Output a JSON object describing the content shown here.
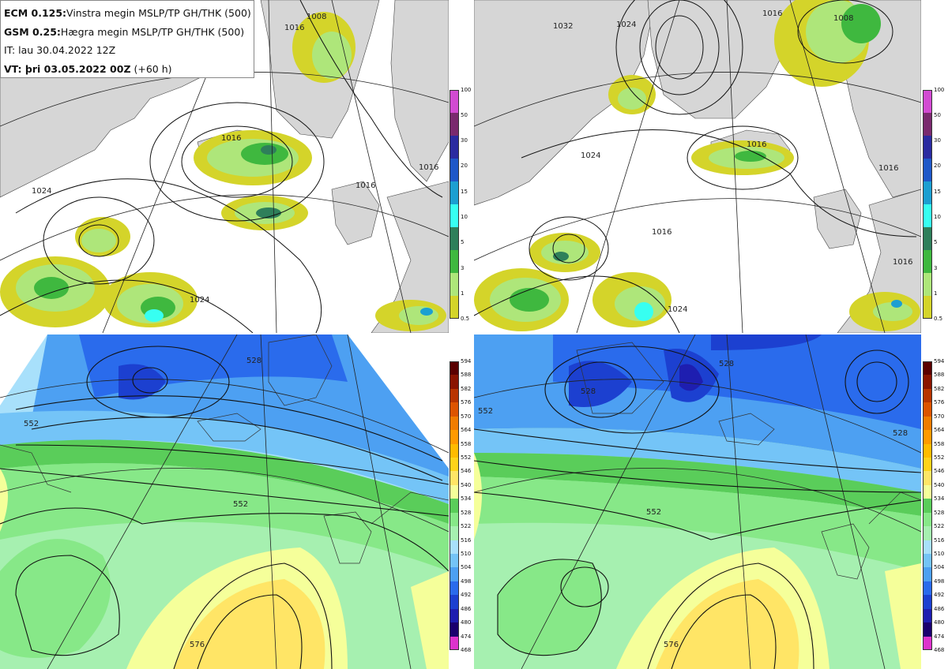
{
  "header": {
    "line1_model": "ECM 0.125:",
    "line1_desc": "Vinstra megin MSLP/TP GH/THK (500)",
    "line2_model": "GSM 0.25:",
    "line2_desc": "Hægra megin MSLP/TP GH/THK (500)",
    "line3": "IT: lau 30.04.2022 12Z",
    "line4_vt": "VT: þri 03.05.2022 00Z",
    "line4_lead": "(+60 h)"
  },
  "colors": {
    "land": "#d6d6d6",
    "sea": "#ffffff",
    "precip": [
      "#d4d42a",
      "#aee67a",
      "#3fb83f",
      "#2e7f5a",
      "#37fff1",
      "#1c9fd1",
      "#1f58c8",
      "#2b2ba0",
      "#7a2a6e",
      "#d24bd2"
    ],
    "thickness": [
      "#3d0033",
      "#6b0066",
      "#9b0088",
      "#c800b4",
      "#dd33cc",
      "#1a006e",
      "#1e1eb0",
      "#1c40d0",
      "#2a6bec",
      "#4da0f2",
      "#74c4f7",
      "#a8e0fb",
      "#a6f0b0",
      "#87e888",
      "#5acd5a",
      "#f5ff9a",
      "#ffe566",
      "#ffd31a",
      "#ffbb00",
      "#ff9a00",
      "#f07c00",
      "#dd5400",
      "#b83400",
      "#8a1400",
      "#5a0000"
    ]
  },
  "precip_colorbar": {
    "ticks": [
      "100",
      "50",
      "30",
      "20",
      "15",
      "10",
      "5",
      "3",
      "1",
      "0.5"
    ]
  },
  "thickness_colorbar": {
    "ticks": [
      "594",
      "588",
      "582",
      "576",
      "570",
      "564",
      "558",
      "552",
      "546",
      "540",
      "534",
      "528",
      "522",
      "516",
      "510",
      "504",
      "498",
      "492",
      "486",
      "480",
      "474",
      "468"
    ]
  },
  "panels": {
    "ecm_mslp": {
      "isobar_labels": [
        "1008",
        "1016",
        "1016",
        "1024",
        "1024",
        "1016",
        "1016"
      ]
    },
    "gsm_mslp": {
      "isobar_labels": [
        "1032",
        "1024",
        "1024",
        "1016",
        "1016",
        "1008",
        "1016",
        "1016",
        "1024",
        "1016"
      ]
    },
    "ecm_thk": {
      "contour_labels": [
        "528",
        "552",
        "552",
        "576"
      ]
    },
    "gsm_thk": {
      "contour_labels": [
        "528",
        "528",
        "552",
        "552",
        "528",
        "576"
      ]
    }
  }
}
